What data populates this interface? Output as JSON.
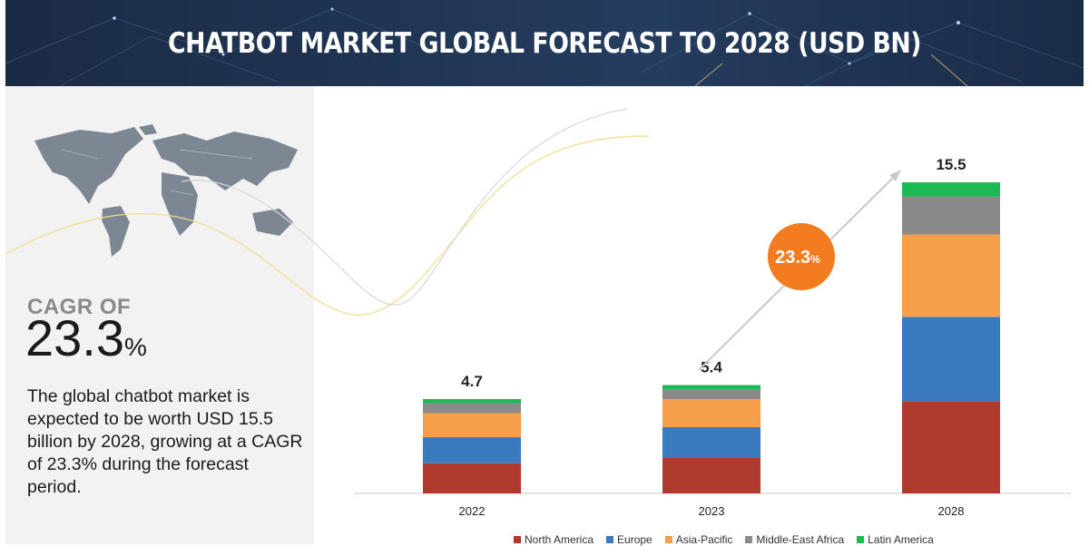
{
  "banner": {
    "title": "CHATBOT MARKET GLOBAL FORECAST TO 2028 (USD BN)"
  },
  "left_panel": {
    "cagr_label": "CAGR OF",
    "cagr_number": "23.3",
    "cagr_unit": "%",
    "description": "The global chatbot market is expected to be worth USD 15.5 billion by 2028, growing at a CAGR of 23.3% during the forecast period."
  },
  "colors": {
    "north_america": "#b03a2e",
    "europe": "#3a7bbf",
    "asia_pacific": "#f7a04b",
    "middle_east_africa": "#8a8a8a",
    "latin_america": "#1db954",
    "bubble": "#f47c20"
  },
  "chart_data": {
    "type": "bar",
    "stacked": true,
    "title": "CHATBOT MARKET GLOBAL FORECAST TO 2028 (USD BN)",
    "categories": [
      "2022",
      "2023",
      "2028"
    ],
    "totals": [
      "4.7",
      "5.4",
      "15.5"
    ],
    "cagr_annotation": {
      "value": "23.3",
      "unit": "%"
    },
    "series": [
      {
        "name": "North America",
        "values": [
          1.5,
          1.8,
          4.6
        ]
      },
      {
        "name": "Europe",
        "values": [
          1.3,
          1.5,
          4.2
        ]
      },
      {
        "name": "Asia-Pacific",
        "values": [
          1.2,
          1.4,
          4.1
        ]
      },
      {
        "name": "Middle-East Africa",
        "values": [
          0.5,
          0.5,
          1.9
        ]
      },
      {
        "name": "Latin America",
        "values": [
          0.2,
          0.2,
          0.7
        ]
      }
    ],
    "ylim": [
      0,
      16
    ],
    "legend_position": "bottom"
  }
}
